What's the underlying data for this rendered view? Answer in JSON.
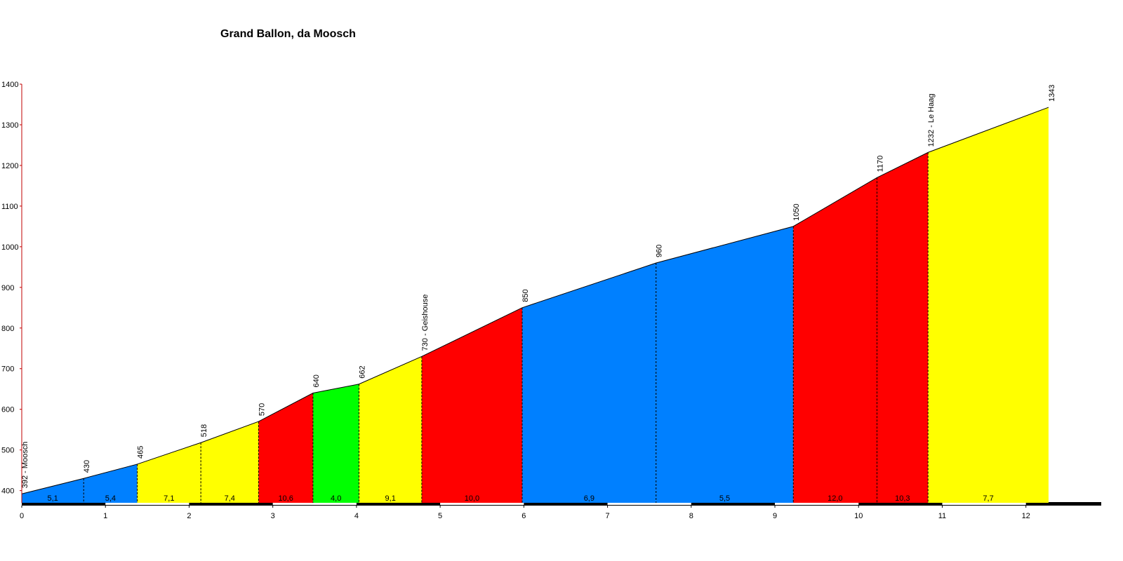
{
  "chart_data": {
    "type": "elevation-profile",
    "title": "Grand Ballon, da Moosch",
    "x": [
      0,
      0.74,
      1.38,
      2.14,
      2.83,
      3.48,
      4.03,
      4.78,
      5.98,
      7.58,
      9.22,
      10.22,
      10.83,
      12.27
    ],
    "values": [
      392,
      430,
      465,
      518,
      570,
      640,
      662,
      730,
      850,
      960,
      1050,
      1170,
      1232,
      1343
    ],
    "value_labels": [
      "392 - Moosch",
      "430",
      "465",
      "518",
      "570",
      "640",
      "662",
      "730 - Geishouse",
      "850",
      "960",
      "1050",
      "1170",
      "1232 - Le Haag",
      "1343"
    ],
    "gradient": {
      "values": [
        5.1,
        5.4,
        7.1,
        7.4,
        10.6,
        4.0,
        9.1,
        10.0,
        6.9,
        5.5,
        12.0,
        10.3,
        7.7
      ],
      "value_labels": [
        "5,1",
        "5,4",
        "7,1",
        "7,4",
        "10,6",
        "4,0",
        "9,1",
        "10,0",
        "6,9",
        "5,5",
        "12,0",
        "10,3",
        "7,7"
      ],
      "colors": [
        "#0080ff",
        "#0080ff",
        "#ffff00",
        "#ffff00",
        "#ff0000",
        "#00ff00",
        "#ffff00",
        "#ff0000",
        "#0080ff",
        "#0080ff",
        "#ff0000",
        "#ff0000",
        "#ffff00"
      ]
    },
    "xlim": [
      0,
      12.9
    ],
    "xticks": [
      0,
      1,
      2,
      3,
      4,
      5,
      6,
      7,
      8,
      9,
      10,
      11,
      12
    ],
    "ylim": [
      370,
      1400
    ],
    "yticks": [
      400,
      500,
      600,
      700,
      800,
      900,
      1000,
      1100,
      1200,
      1300,
      1400
    ]
  }
}
